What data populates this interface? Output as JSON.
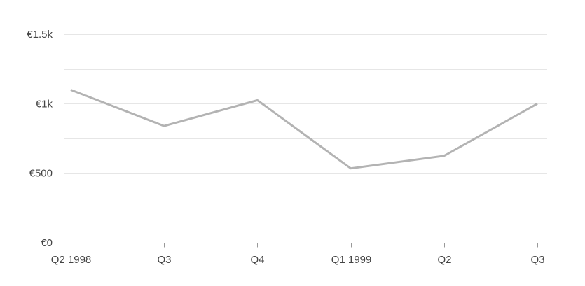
{
  "chart_data": {
    "type": "line",
    "categories": [
      "Q2 1998",
      "Q3",
      "Q4",
      "Q1 1999",
      "Q2",
      "Q3"
    ],
    "series": [
      {
        "values": [
          1100,
          840,
          1025,
          535,
          625,
          1000
        ]
      }
    ],
    "y_ticks": [
      0,
      500,
      1000,
      1500
    ],
    "y_tick_labels": [
      "€0",
      "€500",
      "€1k",
      "€1.5k"
    ],
    "ylim": [
      0,
      1500
    ],
    "grid": true,
    "colors": {
      "line": "#b3b3b3",
      "grid": "#e6e6e6",
      "axis": "#999999",
      "text": "#444444"
    }
  }
}
